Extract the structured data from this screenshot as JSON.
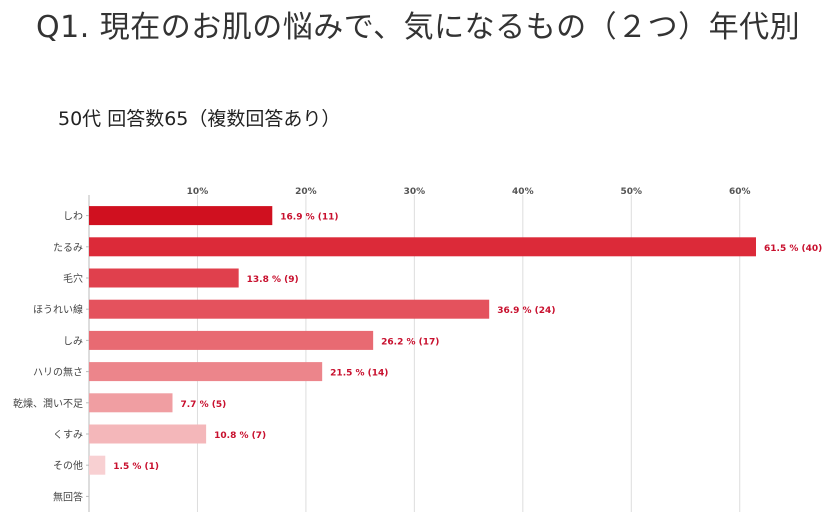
{
  "page": {
    "title": "Q1. 現在のお肌の悩みで、気になるもの（２つ）年代別",
    "subtitle": "50代 回答数65（複数回答あり）"
  },
  "chart_data": {
    "type": "bar",
    "orientation": "horizontal",
    "categories": [
      "しわ",
      "たるみ",
      "毛穴",
      "ほうれい線",
      "しみ",
      "ハリの無さ",
      "乾燥、潤い不足",
      "くすみ",
      "その他",
      "無回答"
    ],
    "values": [
      16.9,
      61.5,
      13.8,
      36.9,
      26.2,
      21.5,
      7.7,
      10.8,
      1.5,
      0
    ],
    "counts": [
      11,
      40,
      9,
      24,
      17,
      14,
      5,
      7,
      1,
      0
    ],
    "data_labels": [
      "16.9 % (11)",
      "61.5 % (40)",
      "13.8 % (9)",
      "36.9 % (24)",
      "26.2 % (17)",
      "21.5 % (14)",
      "7.7 % (5)",
      "10.8 % (7)",
      "1.5 % (1)",
      ""
    ],
    "x_ticks": [
      "10%",
      "20%",
      "30%",
      "40%",
      "50%",
      "60%"
    ],
    "xlim": [
      0,
      61.5
    ],
    "grid": true,
    "bar_colors": [
      "#d0101f",
      "#dc2a39",
      "#e0404d",
      "#e4525d",
      "#e86a72",
      "#ec858b",
      "#f09ea2",
      "#f4b7ba",
      "#f8d0d2",
      "#f8d0d2"
    ]
  }
}
